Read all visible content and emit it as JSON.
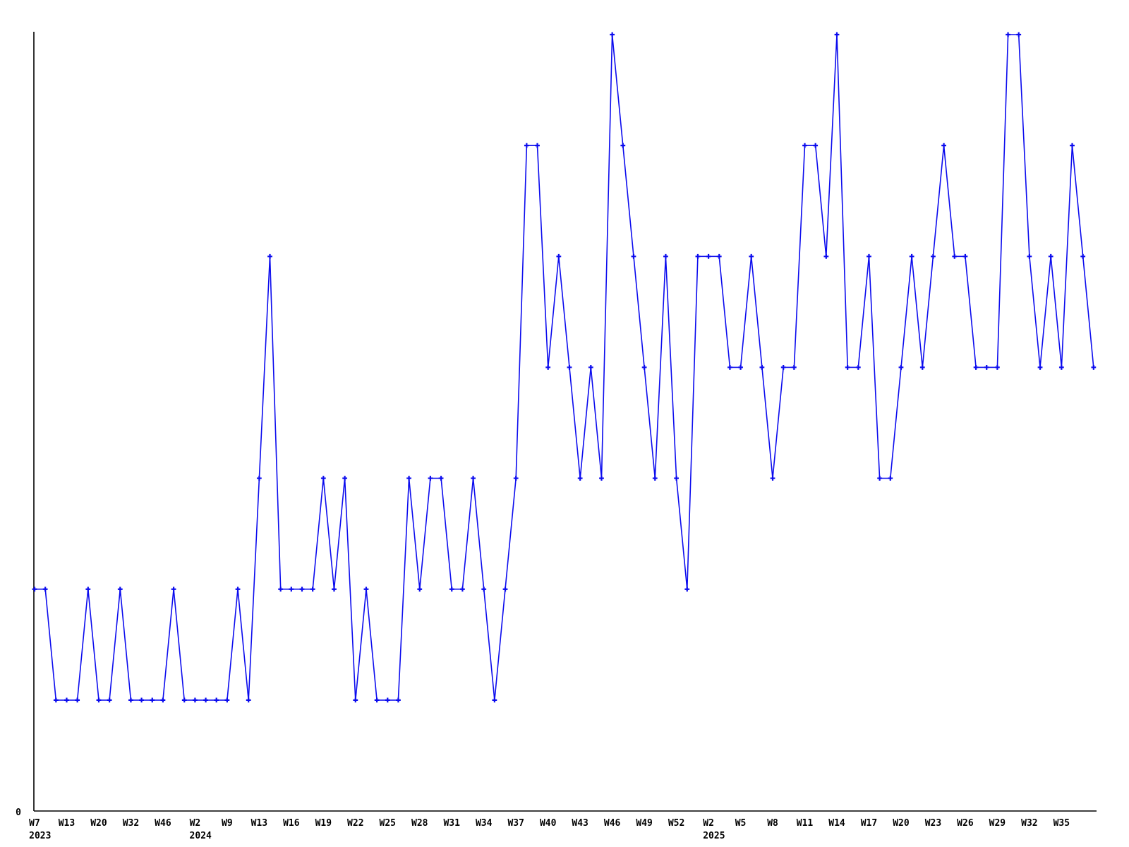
{
  "chart_data": {
    "type": "line",
    "title": "",
    "xlabel": "",
    "ylabel": "",
    "legend": null,
    "grid": false,
    "line_color": "#0b0bee",
    "axis_color": "#000000",
    "background_color": "#ffffff",
    "marker_style": "plus",
    "y_axis": {
      "min": 0,
      "min_label": "0",
      "max": 7,
      "tick_labels_shown": [
        "0"
      ]
    },
    "x_unit": "ISO week",
    "values": [
      2,
      2,
      1,
      1,
      1,
      2,
      1,
      1,
      2,
      1,
      1,
      1,
      1,
      2,
      1,
      1,
      1,
      1,
      1,
      2,
      1,
      3,
      5,
      2,
      2,
      2,
      2,
      3,
      2,
      3,
      1,
      2,
      1,
      1,
      1,
      3,
      2,
      3,
      3,
      2,
      2,
      3,
      2,
      1,
      2,
      3,
      6,
      6,
      4,
      5,
      4,
      3,
      4,
      3,
      7,
      6,
      5,
      4,
      3,
      5,
      3,
      2,
      5,
      5,
      5,
      4,
      4,
      5,
      4,
      3,
      4,
      4,
      6,
      6,
      5,
      7,
      4,
      4,
      5,
      3,
      3,
      4,
      5,
      4,
      5,
      6,
      5,
      5,
      4,
      4,
      4,
      7,
      7,
      5,
      4,
      5,
      4,
      6,
      5,
      4
    ],
    "x_tick_labels": [
      {
        "i": 0,
        "week": "W7",
        "year": "2023"
      },
      {
        "i": 3,
        "week": "W13"
      },
      {
        "i": 6,
        "week": "W20"
      },
      {
        "i": 9,
        "week": "W32"
      },
      {
        "i": 12,
        "week": "W46"
      },
      {
        "i": 15,
        "week": "W2",
        "year": "2024"
      },
      {
        "i": 18,
        "week": "W9"
      },
      {
        "i": 21,
        "week": "W13"
      },
      {
        "i": 24,
        "week": "W16"
      },
      {
        "i": 27,
        "week": "W19"
      },
      {
        "i": 30,
        "week": "W22"
      },
      {
        "i": 33,
        "week": "W25"
      },
      {
        "i": 36,
        "week": "W28"
      },
      {
        "i": 39,
        "week": "W31"
      },
      {
        "i": 42,
        "week": "W34"
      },
      {
        "i": 45,
        "week": "W37"
      },
      {
        "i": 48,
        "week": "W40"
      },
      {
        "i": 51,
        "week": "W43"
      },
      {
        "i": 54,
        "week": "W46"
      },
      {
        "i": 57,
        "week": "W49"
      },
      {
        "i": 60,
        "week": "W52"
      },
      {
        "i": 63,
        "week": "W2",
        "year": "2025"
      },
      {
        "i": 66,
        "week": "W5"
      },
      {
        "i": 69,
        "week": "W8"
      },
      {
        "i": 72,
        "week": "W11"
      },
      {
        "i": 75,
        "week": "W14"
      },
      {
        "i": 78,
        "week": "W17"
      },
      {
        "i": 81,
        "week": "W20"
      },
      {
        "i": 84,
        "week": "W23"
      },
      {
        "i": 87,
        "week": "W26"
      },
      {
        "i": 90,
        "week": "W29"
      },
      {
        "i": 93,
        "week": "W32"
      },
      {
        "i": 96,
        "week": "W35"
      }
    ]
  }
}
